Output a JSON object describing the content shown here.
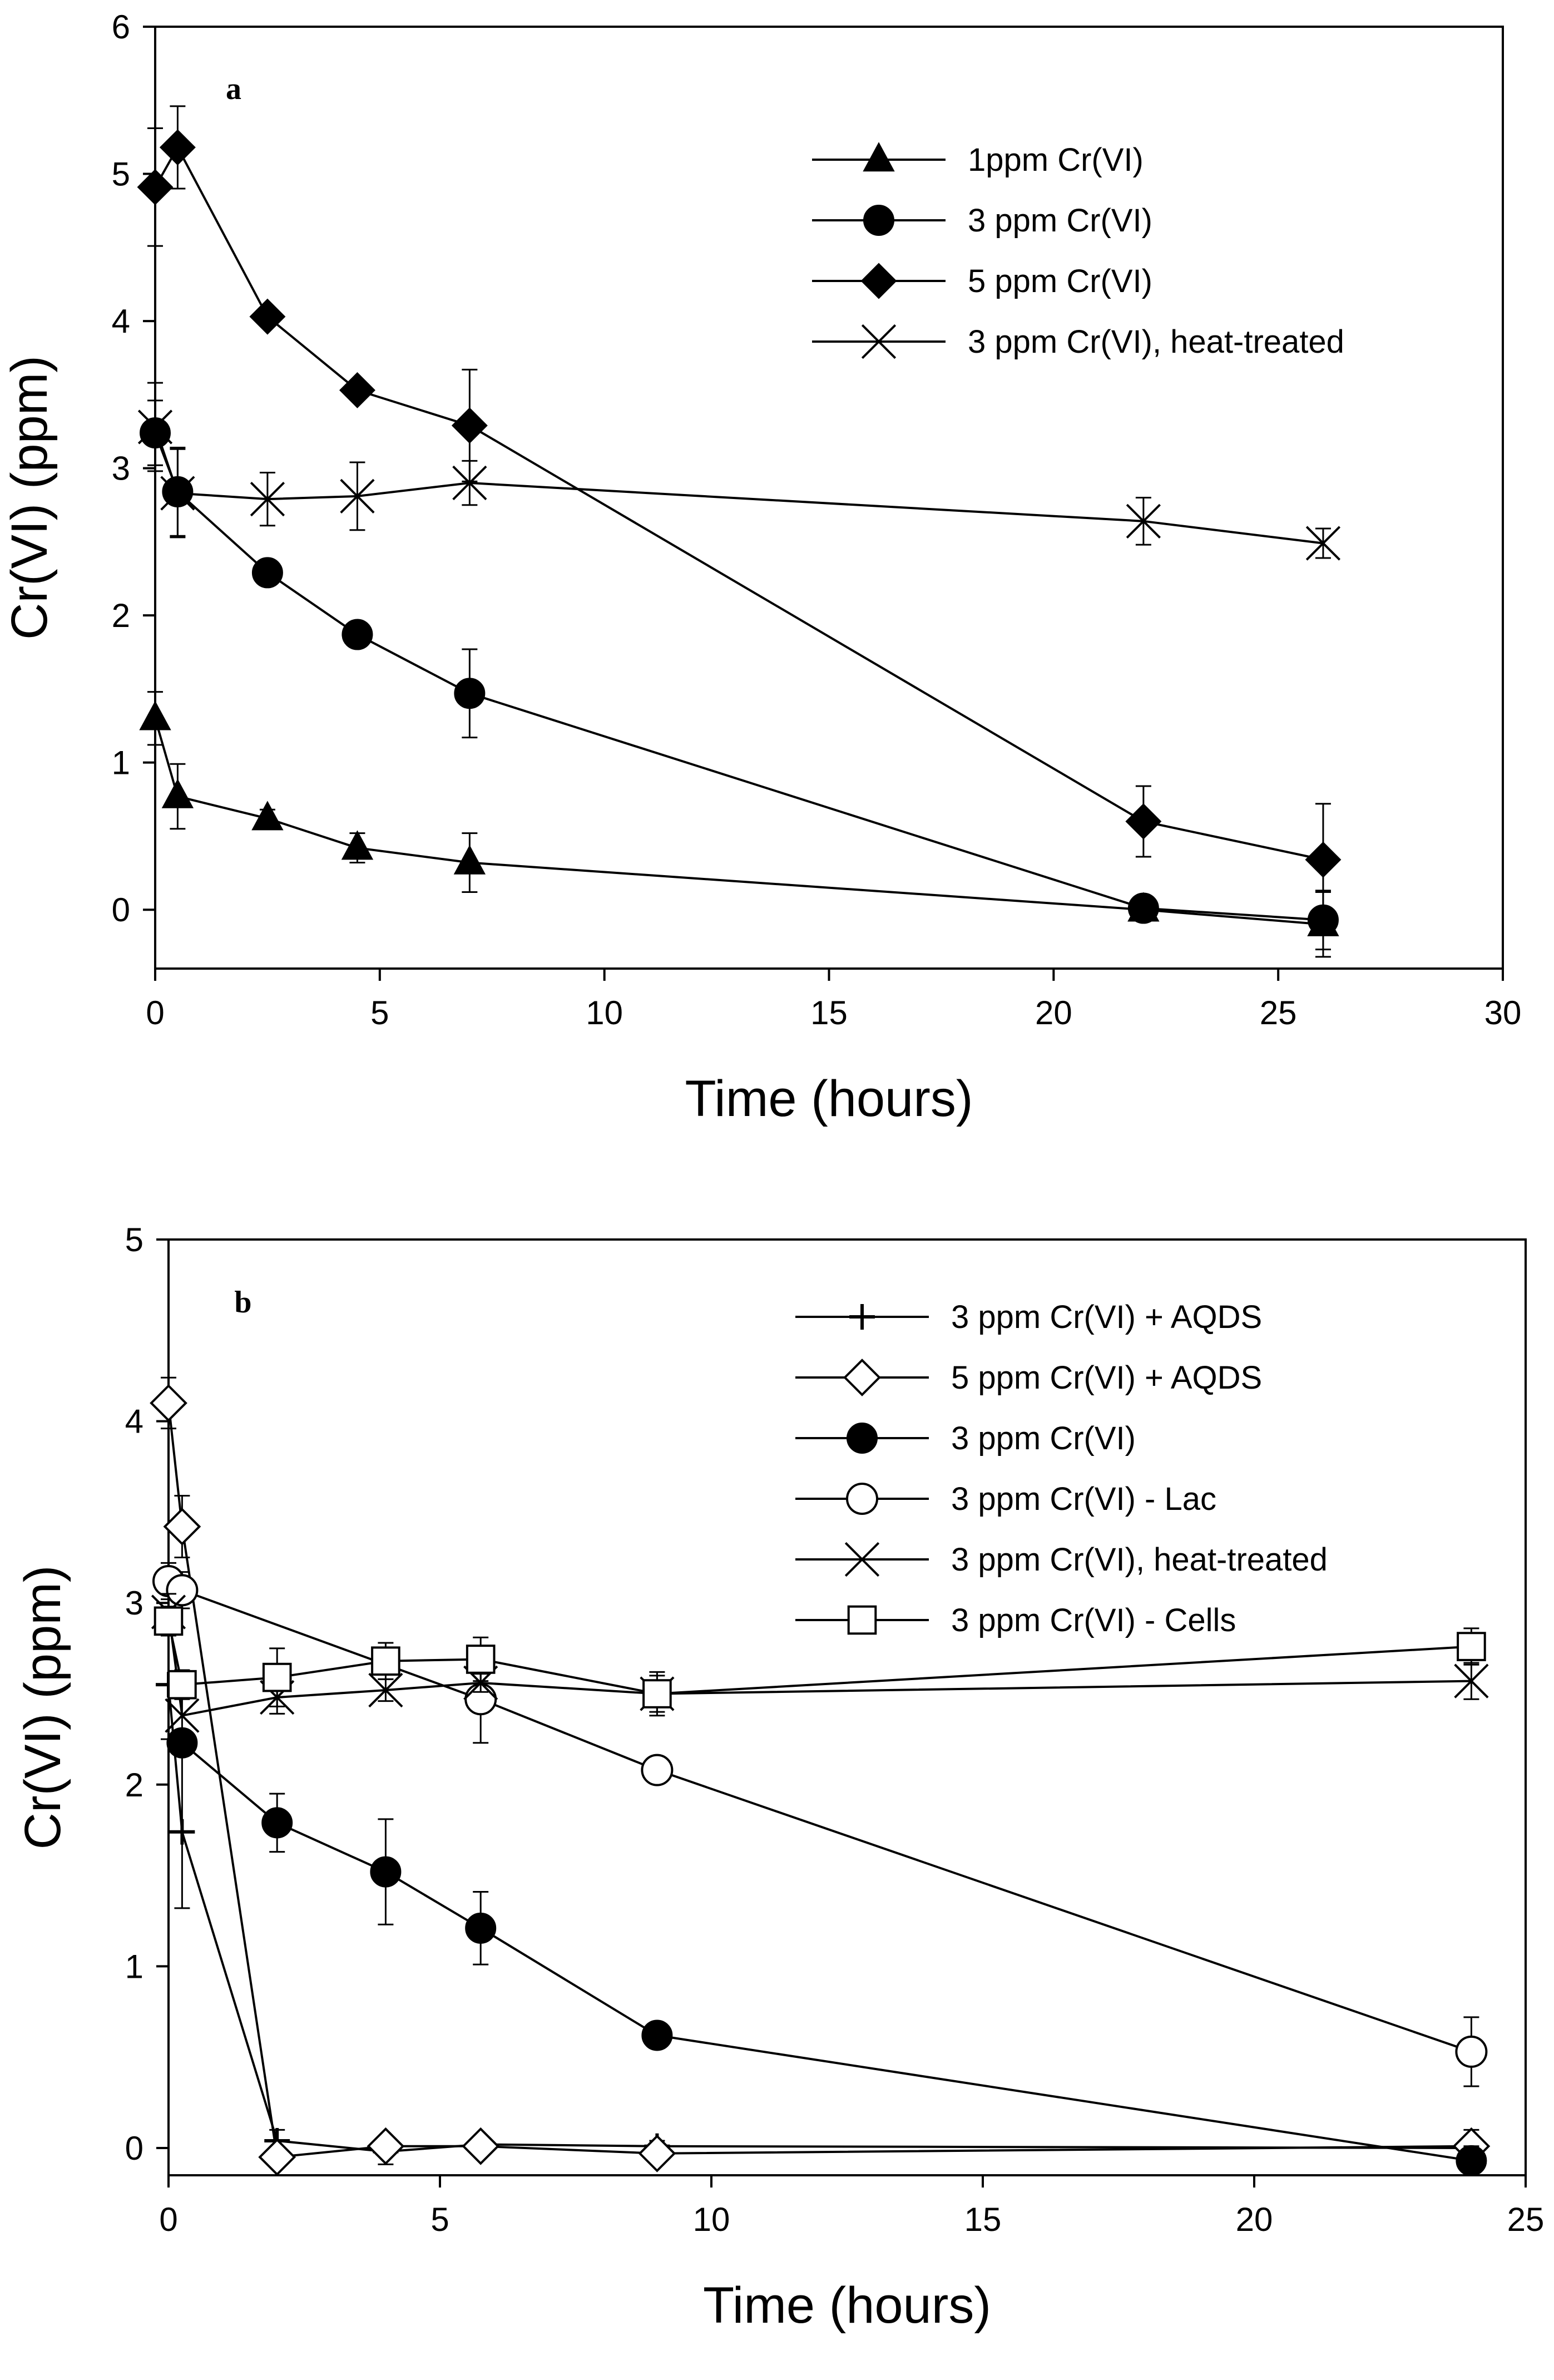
{
  "chart_data": [
    {
      "type": "line",
      "panel_label": "a",
      "xlabel": "Time (hours)",
      "ylabel": "Cr(VI) (ppm)",
      "xlim": [
        0,
        30
      ],
      "ylim": [
        -0.4,
        6
      ],
      "xticks": [
        0,
        5,
        10,
        15,
        20,
        25,
        30
      ],
      "yticks": [
        0,
        1,
        2,
        3,
        4,
        5,
        6
      ],
      "grid": false,
      "legend_position": "top-right",
      "series": [
        {
          "name": "1ppm Cr(VI)",
          "marker": "triangle-filled",
          "x": [
            0,
            0.5,
            2.5,
            4.5,
            7,
            22,
            26
          ],
          "y": [
            1.3,
            0.77,
            0.62,
            0.42,
            0.32,
            0.0,
            -0.1
          ],
          "err": [
            0.18,
            0.22,
            0.06,
            0.1,
            0.2,
            0.05,
            0.22
          ]
        },
        {
          "name": "3 ppm Cr(VI)",
          "marker": "circle-filled",
          "x": [
            0,
            0.5,
            2.5,
            4.5,
            7,
            22,
            26
          ],
          "y": [
            3.24,
            2.84,
            2.29,
            1.87,
            1.47,
            0.01,
            -0.07
          ],
          "err": [
            0.22,
            0.3,
            0.0,
            0.0,
            0.3,
            0.04,
            0.2
          ]
        },
        {
          "name": "5 ppm Cr(VI)",
          "marker": "diamond-filled",
          "x": [
            0,
            0.5,
            2.5,
            4.5,
            7,
            22,
            26
          ],
          "y": [
            4.91,
            5.18,
            4.03,
            3.53,
            3.29,
            0.6,
            0.34
          ],
          "err": [
            0.4,
            0.28,
            0.0,
            0.0,
            0.38,
            0.24,
            0.38
          ]
        },
        {
          "name": "3 ppm Cr(VI), heat-treated",
          "marker": "x-cross",
          "x": [
            0,
            0.5,
            2.5,
            4.5,
            7,
            22,
            26
          ],
          "y": [
            3.28,
            2.83,
            2.79,
            2.81,
            2.9,
            2.64,
            2.49
          ],
          "err": [
            0.3,
            0.3,
            0.18,
            0.23,
            0.15,
            0.16,
            0.1
          ]
        }
      ]
    },
    {
      "type": "line",
      "panel_label": "b",
      "xlabel": "Time (hours)",
      "ylabel": "Cr(VI) (ppm)",
      "xlim": [
        0,
        25
      ],
      "ylim": [
        -0.15,
        5
      ],
      "xticks": [
        0,
        5,
        10,
        15,
        20,
        25
      ],
      "yticks": [
        0,
        1,
        2,
        3,
        4,
        5
      ],
      "grid": false,
      "legend_position": "top-right",
      "series": [
        {
          "name": "3 ppm Cr(VI) + AQDS",
          "marker": "plus",
          "x": [
            0,
            0.25,
            2,
            4,
            5.75,
            9,
            24
          ],
          "y": [
            2.55,
            1.74,
            0.04,
            -0.02,
            0.02,
            0.01,
            0.0
          ],
          "err": [
            0.3,
            0.42,
            0.06,
            0.07,
            0.03,
            0.03,
            0.05
          ]
        },
        {
          "name": "5 ppm Cr(VI) + AQDS",
          "marker": "diamond-open",
          "x": [
            0,
            0.25,
            2,
            4,
            5.75,
            9,
            24
          ],
          "y": [
            4.1,
            3.42,
            -0.05,
            0.01,
            0.01,
            -0.03,
            0.01
          ],
          "err": [
            0.14,
            0.17,
            0.04,
            0.05,
            0.04,
            0.04,
            0.09
          ]
        },
        {
          "name": "3 ppm Cr(VI)",
          "marker": "circle-filled",
          "x": [
            0.25,
            2,
            4,
            5.75,
            9,
            24
          ],
          "y": [
            2.23,
            1.79,
            1.52,
            1.21,
            0.62,
            -0.07
          ],
          "err": [
            0.0,
            0.16,
            0.29,
            0.2,
            0.0,
            0.08
          ]
        },
        {
          "name": "3 ppm Cr(VI) - Lac",
          "marker": "circle-open",
          "x": [
            0,
            0.25,
            5.75,
            9,
            24
          ],
          "y": [
            3.12,
            3.07,
            2.47,
            2.08,
            0.53
          ],
          "err": [
            0.1,
            0.1,
            0.24,
            0.0,
            0.19
          ]
        },
        {
          "name": "3 ppm Cr(VI), heat-treated",
          "marker": "x-cross",
          "x": [
            0,
            0.25,
            2,
            4,
            5.75,
            9,
            24
          ],
          "y": [
            2.95,
            2.38,
            2.48,
            2.52,
            2.56,
            2.5,
            2.57
          ],
          "err": [
            0.1,
            0.1,
            0.09,
            0.06,
            0.05,
            0.1,
            0.1
          ]
        },
        {
          "name": "3 ppm Cr(VI) - Cells",
          "marker": "square-open",
          "x": [
            0,
            0.25,
            2,
            4,
            5.75,
            9,
            24
          ],
          "y": [
            2.9,
            2.55,
            2.59,
            2.68,
            2.69,
            2.5,
            2.76
          ],
          "err": [
            0.08,
            0.08,
            0.16,
            0.1,
            0.12,
            0.12,
            0.1
          ]
        }
      ]
    }
  ]
}
